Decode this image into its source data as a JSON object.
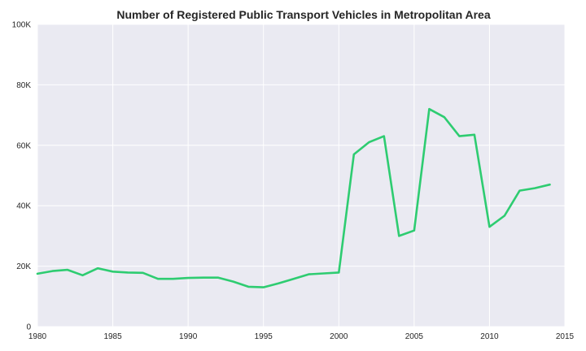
{
  "chart_data": {
    "type": "line",
    "title": "Number of Registered Public Transport Vehicles in Metropolitan Area",
    "xlabel": "",
    "ylabel": "",
    "xlim": [
      1980,
      2015
    ],
    "ylim": [
      0,
      100000
    ],
    "x_ticks": [
      1980,
      1985,
      1990,
      1995,
      2000,
      2005,
      2010,
      2015
    ],
    "x_tick_labels": [
      "1980",
      "1985",
      "1990",
      "1995",
      "2000",
      "2005",
      "2010",
      "2015"
    ],
    "y_ticks": [
      0,
      20000,
      40000,
      60000,
      80000,
      100000
    ],
    "y_tick_labels": [
      "0",
      "20K",
      "40K",
      "60K",
      "80K",
      "100K"
    ],
    "grid": true,
    "legend": "none",
    "colors": {
      "line": "#2ecc71",
      "plot_background": "#eaeaf2",
      "grid": "#ffffff"
    },
    "series": [
      {
        "x": [
          1980,
          1981,
          1982,
          1983,
          1984,
          1985,
          1986,
          1987,
          1988,
          1989,
          1990,
          1991,
          1992,
          1993,
          1994,
          1995,
          1996,
          1997,
          1998,
          1999,
          2000,
          2001,
          2002,
          2003,
          2004,
          2005,
          2006,
          2007,
          2008,
          2009,
          2010,
          2011,
          2012,
          2013,
          2014
        ],
        "values": [
          17500,
          18400,
          18800,
          17000,
          19300,
          18200,
          17900,
          17800,
          15800,
          15800,
          16100,
          16200,
          16200,
          14900,
          13200,
          13000,
          14300,
          15800,
          17300,
          17600,
          17900,
          57000,
          61000,
          63000,
          30000,
          31800,
          72000,
          69300,
          63000,
          63500,
          33000,
          36700,
          45000,
          45800,
          47000
        ]
      }
    ]
  }
}
